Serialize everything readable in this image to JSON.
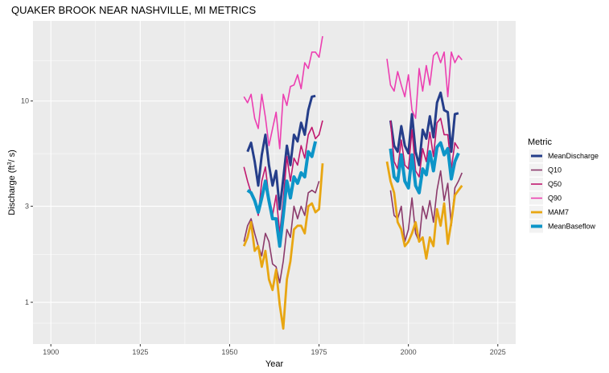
{
  "chart_data": {
    "type": "line",
    "title": "QUAKER BROOK NEAR NASHVILLE, MI  METRICS",
    "xlabel": "Year",
    "ylabel_prefix": "Discharge (ft",
    "ylabel_sup": "3",
    "ylabel_suffix": "/ s)",
    "x_scale": "linear",
    "y_scale": "log10",
    "xlim": [
      1895,
      2030
    ],
    "ylim": [
      0.62,
      25
    ],
    "x_ticks": [
      1900,
      1925,
      1950,
      1975,
      2000,
      2025
    ],
    "y_ticks": [
      1,
      3,
      10
    ],
    "grid": true,
    "legend": {
      "title": "Metric",
      "position": "right"
    },
    "series": [
      {
        "name": "MeanDischarge",
        "color": "#253e8a",
        "width": 3,
        "segments": [
          {
            "x": [
              1955,
              1956,
              1957,
              1958,
              1959,
              1960,
              1961,
              1962,
              1963,
              1964,
              1965,
              1966,
              1967,
              1968,
              1969,
              1970,
              1971,
              1972,
              1973,
              1974
            ],
            "y": [
              5.6,
              6.2,
              5.0,
              3.8,
              5.4,
              6.8,
              4.8,
              3.8,
              4.5,
              2.9,
              4.1,
              6.0,
              4.8,
              6.8,
              6.3,
              7.8,
              6.8,
              9.0,
              10.5,
              10.6
            ]
          },
          {
            "x": [
              1995,
              1996,
              1997,
              1998,
              1999,
              2000,
              2001,
              2002,
              2003,
              2004,
              2005,
              2006,
              2007,
              2008,
              2009,
              2010,
              2011,
              2012,
              2013,
              2014
            ],
            "y": [
              8.0,
              6.0,
              5.6,
              7.5,
              6.0,
              5.5,
              8.6,
              5.6,
              4.8,
              7.2,
              6.5,
              8.4,
              6.6,
              9.8,
              11.0,
              9.0,
              8.8,
              5.6,
              8.6,
              8.7
            ]
          }
        ]
      },
      {
        "name": "Q10",
        "color": "#8b3a6b",
        "width": 1.6,
        "segments": [
          {
            "x": [
              1954,
              1955,
              1956,
              1957,
              1958,
              1959,
              1960,
              1961,
              1962,
              1963,
              1964,
              1965,
              1966,
              1967,
              1968,
              1969,
              1970,
              1971,
              1972,
              1973,
              1974,
              1975
            ],
            "y": [
              2.0,
              2.4,
              2.6,
              2.2,
              1.9,
              1.7,
              2.2,
              2.0,
              1.55,
              1.5,
              1.25,
              1.6,
              2.3,
              2.1,
              3.0,
              2.6,
              3.0,
              2.7,
              3.5,
              3.6,
              3.5,
              4.0
            ]
          },
          {
            "x": [
              1995,
              1996,
              1997,
              1998,
              1999,
              2000,
              2001,
              2002,
              2003,
              2004,
              2005,
              2006,
              2007,
              2008,
              2009,
              2010,
              2011,
              2012,
              2013,
              2014,
              2015
            ],
            "y": [
              3.6,
              2.7,
              2.6,
              3.0,
              2.0,
              2.3,
              3.3,
              2.2,
              2.0,
              3.0,
              2.6,
              3.2,
              2.5,
              3.6,
              4.5,
              3.2,
              3.9,
              2.4,
              3.7,
              4.0,
              4.4
            ]
          }
        ]
      },
      {
        "name": "Q50",
        "color": "#c0186f",
        "width": 1.6,
        "segments": [
          {
            "x": [
              1954,
              1955,
              1956,
              1957,
              1958,
              1959,
              1960,
              1961,
              1962,
              1963,
              1964,
              1965,
              1966,
              1967,
              1968,
              1969,
              1970,
              1971,
              1972,
              1973,
              1974,
              1975,
              1976
            ],
            "y": [
              4.7,
              4.0,
              3.5,
              3.2,
              2.7,
              4.0,
              4.7,
              3.3,
              2.7,
              3.4,
              2.2,
              3.2,
              5.3,
              4.0,
              5.2,
              4.8,
              6.0,
              5.2,
              6.8,
              7.4,
              6.5,
              6.8,
              8.0
            ]
          },
          {
            "x": [
              1995,
              1996,
              1997,
              1998,
              1999,
              2000,
              2001,
              2002,
              2003,
              2004,
              2005,
              2006,
              2007,
              2008,
              2009,
              2010,
              2011,
              2012,
              2013,
              2014
            ],
            "y": [
              8.0,
              5.0,
              4.6,
              6.4,
              4.8,
              4.6,
              7.2,
              4.5,
              4.2,
              5.8,
              5.0,
              7.0,
              5.3,
              7.8,
              8.2,
              6.8,
              6.8,
              4.6,
              6.2,
              5.8
            ]
          }
        ]
      },
      {
        "name": "Q90",
        "color": "#ec3fb1",
        "width": 1.6,
        "segments": [
          {
            "x": [
              1954,
              1955,
              1956,
              1957,
              1958,
              1959,
              1960,
              1961,
              1962,
              1963,
              1964,
              1965,
              1966,
              1967,
              1968,
              1969,
              1970,
              1971,
              1972,
              1973,
              1974,
              1975,
              1976
            ],
            "y": [
              10.5,
              9.8,
              10.8,
              8.2,
              7.3,
              10.8,
              8.3,
              6.0,
              7.3,
              8.8,
              5.8,
              10.8,
              9.5,
              11.8,
              12.0,
              13.5,
              11.5,
              15.5,
              14.5,
              17.5,
              17.5,
              16.5,
              21.0
            ]
          },
          {
            "x": [
              1994,
              1995,
              1996,
              1997,
              1998,
              1999,
              2000,
              2001,
              2002,
              2003,
              2004,
              2005,
              2006,
              2007,
              2008,
              2009,
              2010,
              2011,
              2012,
              2013,
              2014,
              2015
            ],
            "y": [
              16.2,
              12.0,
              11.2,
              14.0,
              12.0,
              10.5,
              13.5,
              9.0,
              8.2,
              14.5,
              11.2,
              15.0,
              12.0,
              16.8,
              17.5,
              15.5,
              17.5,
              10.5,
              17.5,
              15.5,
              16.8,
              16.0
            ]
          }
        ]
      },
      {
        "name": "MAM7",
        "color": "#e8a612",
        "width": 2.8,
        "segments": [
          {
            "x": [
              1954,
              1955,
              1956,
              1957,
              1958,
              1959,
              1960,
              1961,
              1962,
              1963,
              1964,
              1965,
              1966,
              1967,
              1968,
              1969,
              1970,
              1971,
              1972,
              1973,
              1974,
              1975,
              1976
            ],
            "y": [
              1.9,
              2.1,
              2.5,
              1.8,
              1.9,
              1.5,
              1.8,
              1.3,
              1.15,
              1.45,
              0.97,
              0.74,
              1.3,
              1.6,
              2.3,
              2.4,
              2.4,
              2.2,
              3.0,
              3.1,
              2.8,
              2.9,
              4.9
            ]
          },
          {
            "x": [
              1994,
              1995,
              1996,
              1997,
              1998,
              1999,
              2000,
              2001,
              2002,
              2003,
              2004,
              2005,
              2006,
              2007,
              2008,
              2009,
              2010,
              2011,
              2012,
              2013,
              2014,
              2015
            ],
            "y": [
              5.0,
              4.0,
              3.5,
              2.5,
              2.3,
              1.9,
              2.0,
              2.2,
              2.5,
              2.0,
              2.1,
              1.65,
              2.1,
              1.9,
              2.9,
              2.4,
              3.1,
              1.95,
              2.5,
              3.4,
              3.6,
              3.8
            ]
          }
        ]
      },
      {
        "name": "MeanBaseflow",
        "color": "#0d95c8",
        "width": 4,
        "segments": [
          {
            "x": [
              1955,
              1956,
              1957,
              1958,
              1959,
              1960,
              1961,
              1962,
              1963,
              1964,
              1965,
              1966,
              1967,
              1968,
              1969,
              1970,
              1971,
              1972,
              1973,
              1974
            ],
            "y": [
              3.6,
              3.5,
              3.2,
              2.8,
              3.3,
              4.0,
              3.2,
              2.6,
              2.6,
              1.9,
              2.7,
              4.0,
              3.3,
              4.2,
              3.9,
              4.4,
              4.2,
              5.6,
              5.3,
              6.3
            ]
          },
          {
            "x": [
              1995,
              1996,
              1997,
              1998,
              1999,
              2000,
              2001,
              2002,
              2003,
              2004,
              2005,
              2006,
              2007,
              2008,
              2009,
              2010,
              2011,
              2012,
              2013,
              2014
            ],
            "y": [
              5.8,
              4.2,
              4.0,
              5.4,
              4.0,
              3.7,
              5.4,
              3.8,
              3.5,
              4.6,
              4.3,
              5.6,
              4.5,
              5.9,
              6.2,
              5.4,
              5.8,
              4.1,
              5.0,
              5.5
            ]
          }
        ]
      }
    ]
  }
}
